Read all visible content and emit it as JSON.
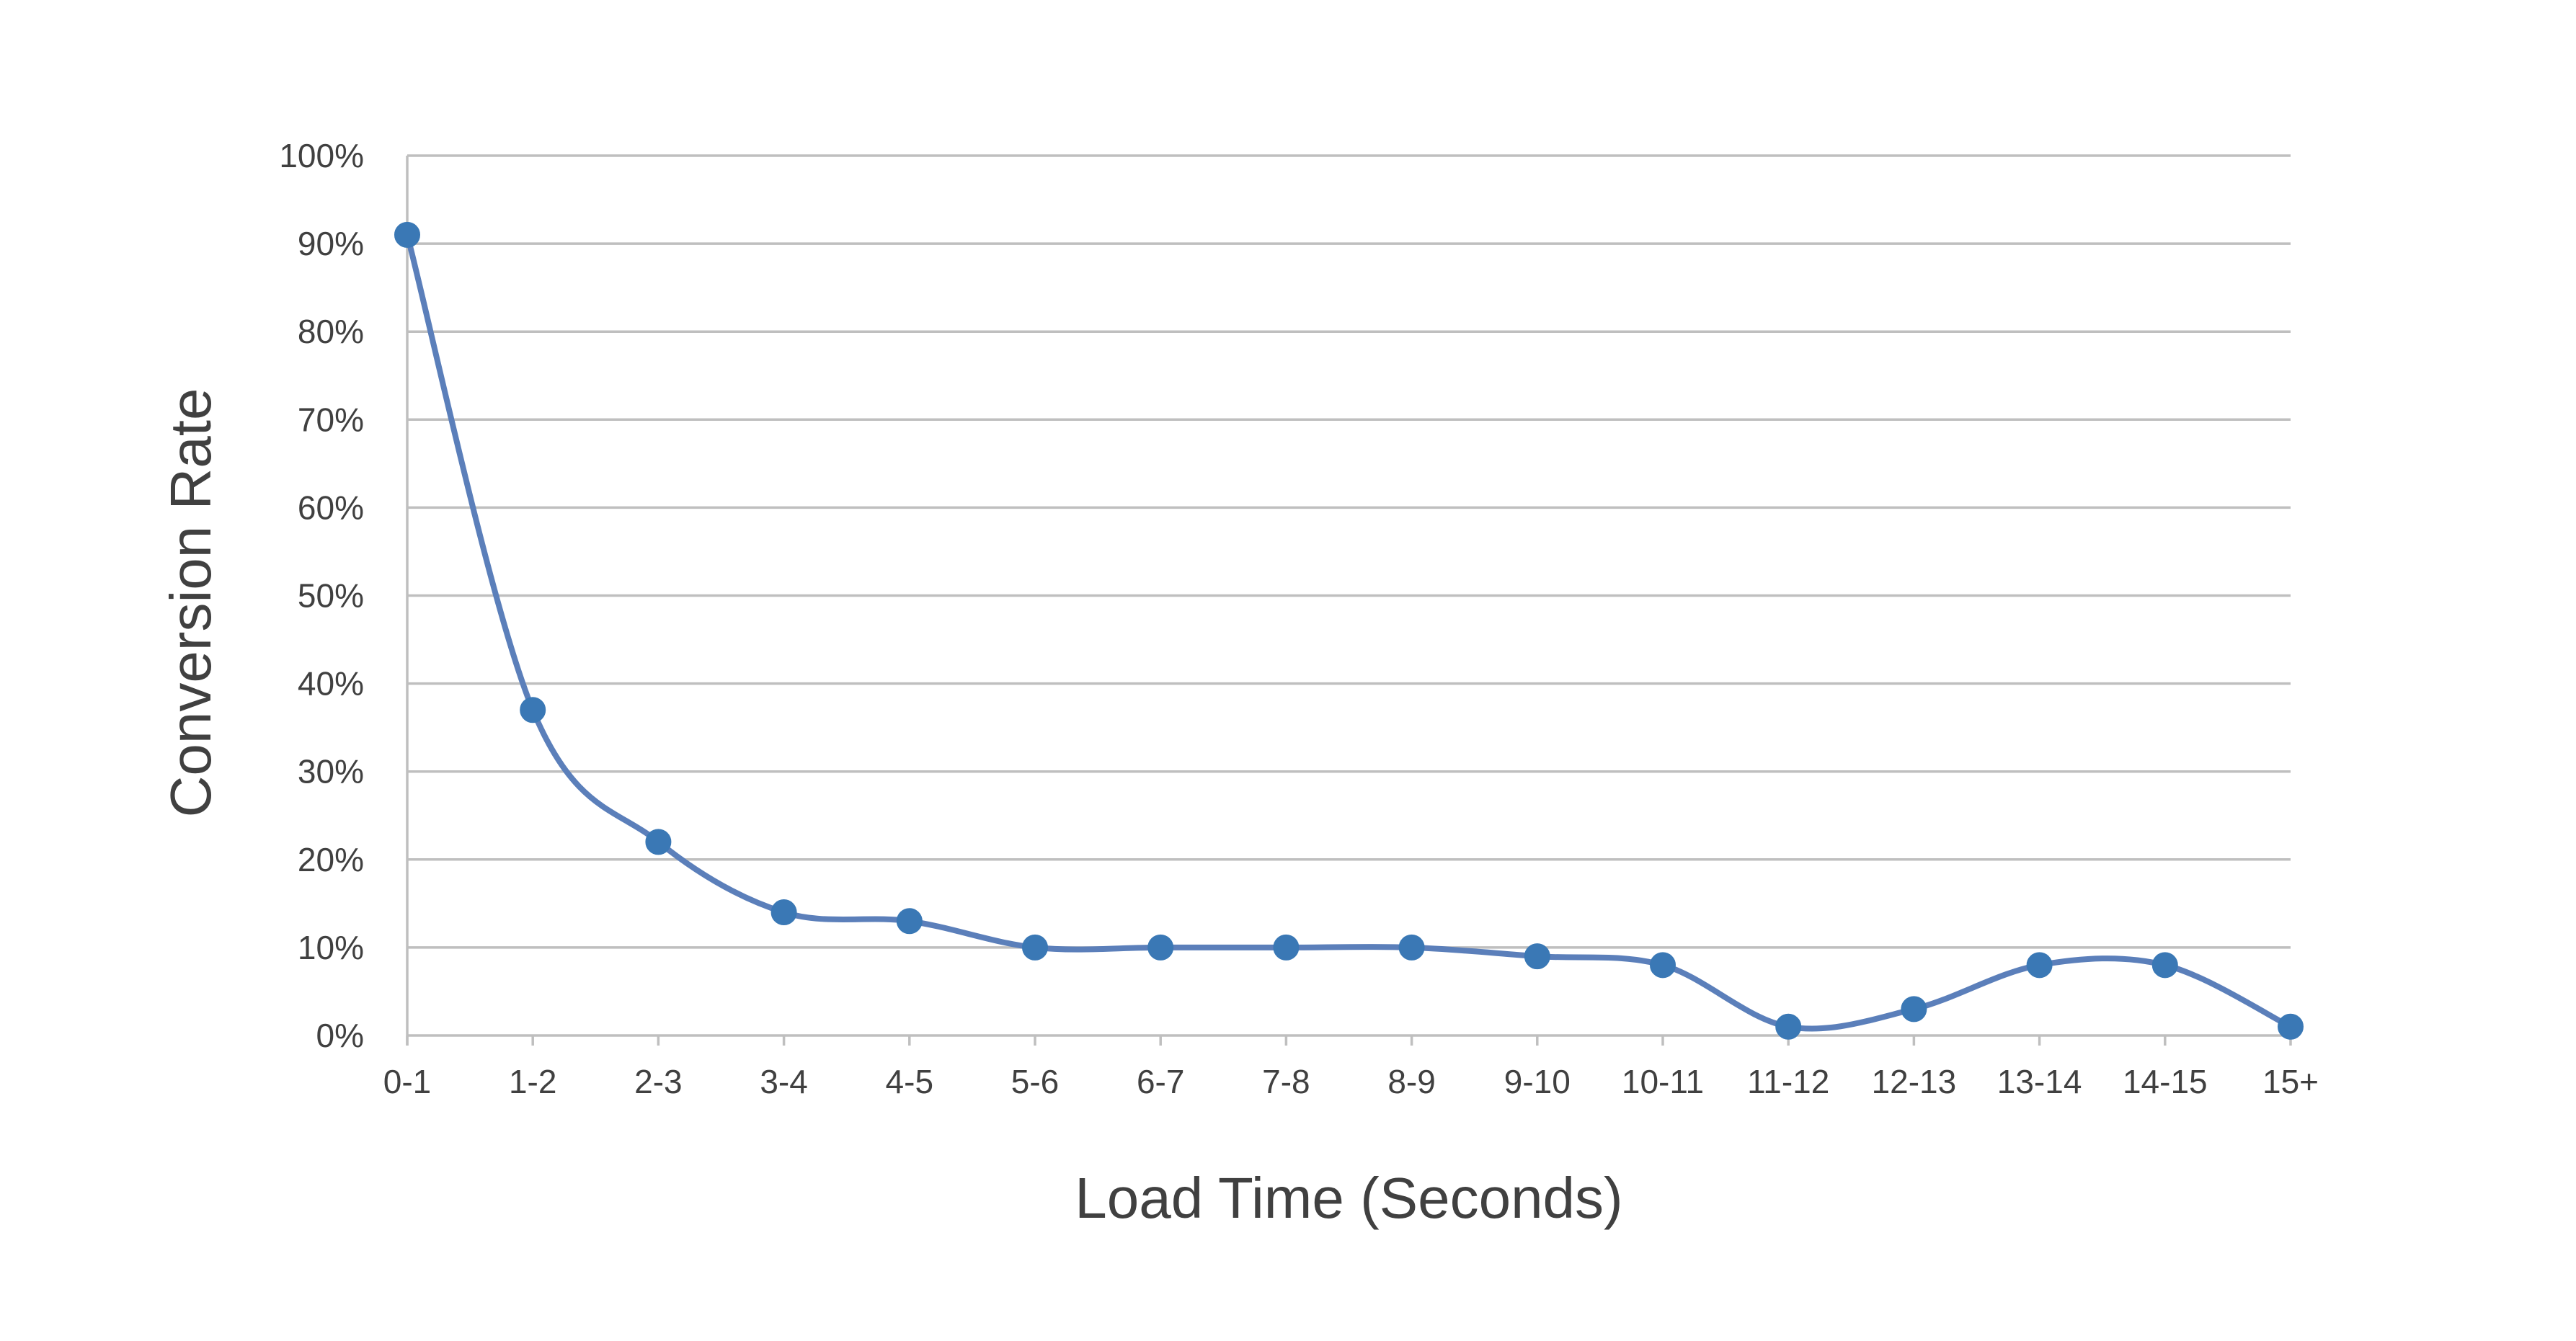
{
  "chart_data": {
    "type": "line",
    "title": "",
    "xlabel": "Load Time (Seconds)",
    "ylabel": "Conversion Rate",
    "categories": [
      "0-1",
      "1-2",
      "2-3",
      "3-4",
      "4-5",
      "5-6",
      "6-7",
      "7-8",
      "8-9",
      "9-10",
      "10-11",
      "11-12",
      "12-13",
      "13-14",
      "14-15",
      "15+"
    ],
    "series": [
      {
        "values": [
          91,
          37,
          22,
          14,
          13,
          10,
          10,
          10,
          10,
          9,
          8,
          1,
          3,
          8,
          8,
          1
        ],
        "color": "#5b7fba",
        "marker_color": "#3a78b5",
        "smooth": true
      }
    ],
    "ylim": [
      0,
      100
    ],
    "yticks": [
      "0%",
      "10%",
      "20%",
      "30%",
      "40%",
      "50%",
      "60%",
      "70%",
      "80%",
      "90%",
      "100%"
    ],
    "y_unit": "%",
    "grid": true,
    "legend": "none"
  }
}
